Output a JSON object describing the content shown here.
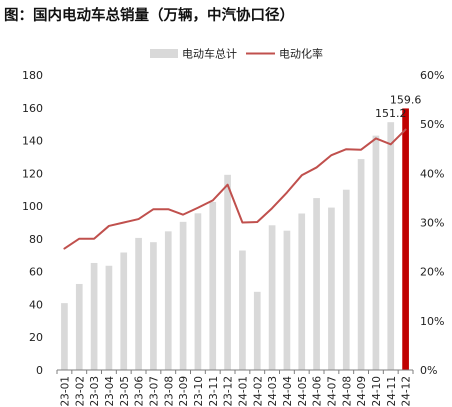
{
  "chart_data": {
    "type": "bar",
    "title": "图：国内电动车总销量（万辆，中汽协口径）",
    "categories": [
      "23-01",
      "23-02",
      "23-03",
      "23-04",
      "23-05",
      "23-06",
      "23-07",
      "23-08",
      "23-09",
      "23-10",
      "23-11",
      "23-12",
      "24-01",
      "24-02",
      "24-03",
      "24-04",
      "24-05",
      "24-06",
      "24-07",
      "24-08",
      "24-09",
      "24-10",
      "24-11",
      "24-12"
    ],
    "series": [
      {
        "name": "电动车总计",
        "type": "bar",
        "axis": "left",
        "color": "#d9d9d9",
        "highlight_last_color": "#c00000",
        "values": [
          40.8,
          52.5,
          65.3,
          63.6,
          71.7,
          80.6,
          78.0,
          84.6,
          90.4,
          95.6,
          102.6,
          119.1,
          72.9,
          47.7,
          88.3,
          85.0,
          95.5,
          104.9,
          99.1,
          110.0,
          128.7,
          143.0,
          151.2,
          159.6
        ]
      },
      {
        "name": "电动化率",
        "type": "line",
        "axis": "right",
        "color": "#c0504d",
        "values": [
          24.7,
          26.7,
          26.7,
          29.3,
          30.0,
          30.7,
          32.7,
          32.7,
          31.6,
          33.0,
          34.5,
          37.7,
          30.0,
          30.1,
          32.9,
          36.1,
          39.6,
          41.2,
          43.7,
          44.9,
          44.8,
          47.1,
          45.9,
          48.9
        ]
      }
    ],
    "data_labels": [
      {
        "index": 22,
        "text": "151.2"
      },
      {
        "index": 23,
        "text": "159.6"
      }
    ],
    "y_left": {
      "min": 0,
      "max": 180,
      "ticks": [
        "0",
        "20",
        "40",
        "60",
        "80",
        "100",
        "120",
        "140",
        "160",
        "180"
      ]
    },
    "y_right": {
      "min": 0,
      "max": 60,
      "ticks": [
        "0%",
        "10%",
        "20%",
        "30%",
        "40%",
        "50%",
        "60%"
      ]
    },
    "grid": false,
    "legend_position": "top-center"
  }
}
